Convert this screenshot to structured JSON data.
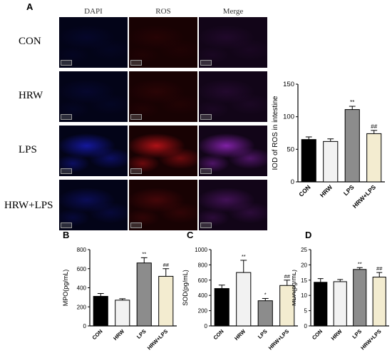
{
  "panel_letters": {
    "a": "A",
    "b": "B",
    "c": "C",
    "d": "D"
  },
  "micrographs": {
    "columns": [
      "DAPI",
      "ROS",
      "Merge"
    ],
    "rows": [
      "CON",
      "HRW",
      "LPS",
      "HRW+LPS"
    ],
    "colors": {
      "dapi": "#1a1ec8",
      "ros": "#c8141a",
      "merge": "#9a28c8"
    },
    "intensity": [
      [
        0.1,
        0.08,
        0.1
      ],
      [
        0.12,
        0.1,
        0.12
      ],
      [
        0.75,
        0.85,
        0.8
      ],
      [
        0.35,
        0.25,
        0.35
      ]
    ]
  },
  "chart_data": [
    {
      "type": "bar",
      "id": "ros",
      "categories": [
        "CON",
        "HRW",
        "LPS",
        "HRW+LPS"
      ],
      "values": [
        65,
        62,
        111,
        74
      ],
      "errors": [
        4,
        4,
        5,
        5
      ],
      "annotations": [
        "",
        "",
        "**",
        "##"
      ],
      "ylabel": "IOD of ROS in intestine",
      "ylim": [
        0,
        150
      ],
      "yticks": [
        0,
        50,
        100,
        150
      ],
      "fills": [
        "#000000",
        "#f2f2f2",
        "#8c8c8c",
        "#f3ecd0"
      ]
    },
    {
      "type": "bar",
      "id": "mpo",
      "categories": [
        "CON",
        "HRW",
        "LPS",
        "HRW+LPS"
      ],
      "values": [
        310,
        270,
        660,
        520
      ],
      "errors": [
        30,
        15,
        55,
        80
      ],
      "annotations": [
        "",
        "",
        "**",
        "##"
      ],
      "ylabel": "MPO(pg/mL)",
      "ylim": [
        0,
        800
      ],
      "yticks": [
        0,
        200,
        400,
        600,
        800
      ],
      "fills": [
        "#000000",
        "#f2f2f2",
        "#8c8c8c",
        "#f3ecd0"
      ]
    },
    {
      "type": "bar",
      "id": "sod",
      "categories": [
        "CON",
        "HRW",
        "LPS",
        "HRW+LPS"
      ],
      "values": [
        490,
        700,
        330,
        530
      ],
      "errors": [
        45,
        160,
        30,
        70
      ],
      "annotations": [
        "",
        "**",
        "*",
        "##"
      ],
      "ylabel": "SOD(pg/mL)",
      "ylim": [
        0,
        1000
      ],
      "yticks": [
        0,
        200,
        400,
        600,
        800,
        1000
      ],
      "fills": [
        "#000000",
        "#f2f2f2",
        "#8c8c8c",
        "#f3ecd0"
      ]
    },
    {
      "type": "bar",
      "id": "mda",
      "categories": [
        "CON",
        "HRW",
        "LPS",
        "HRW+LPS"
      ],
      "values": [
        14.3,
        14.5,
        18.5,
        16.0
      ],
      "errors": [
        1.2,
        0.7,
        0.6,
        1.5
      ],
      "annotations": [
        "",
        "",
        "**",
        "##"
      ],
      "ylabel": "MDA(pg/mL)",
      "ylim": [
        0,
        25
      ],
      "yticks": [
        0,
        5,
        10,
        15,
        20,
        25
      ],
      "fills": [
        "#000000",
        "#f2f2f2",
        "#8c8c8c",
        "#f3ecd0"
      ]
    }
  ]
}
